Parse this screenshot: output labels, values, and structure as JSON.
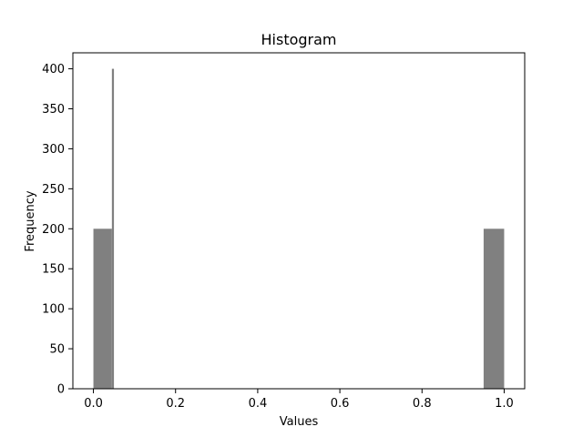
{
  "chart_data": {
    "type": "bar",
    "title": "Histogram",
    "xlabel": "Values",
    "ylabel": "Frequency",
    "xlim": [
      -0.05,
      1.05
    ],
    "ylim": [
      0,
      420
    ],
    "x_ticks": [
      0.0,
      0.2,
      0.4,
      0.6,
      0.8,
      1.0
    ],
    "x_tick_labels": [
      "0.0",
      "0.2",
      "0.4",
      "0.6",
      "0.8",
      "1.0"
    ],
    "y_ticks": [
      0,
      50,
      100,
      150,
      200,
      250,
      300,
      350,
      400
    ],
    "y_tick_labels": [
      "0",
      "50",
      "100",
      "150",
      "200",
      "250",
      "300",
      "350",
      "400"
    ],
    "bar_color": "#808080",
    "grid": false,
    "bins": [
      {
        "x0": 0.0,
        "x1": 0.045,
        "count": 200
      },
      {
        "x0": 0.045,
        "x1": 0.05,
        "count": 400
      },
      {
        "x0": 0.95,
        "x1": 1.0,
        "count": 200
      }
    ]
  }
}
